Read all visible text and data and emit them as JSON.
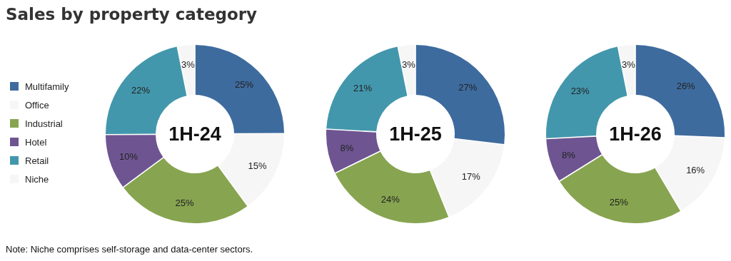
{
  "chart_data": [
    {
      "type": "donut",
      "title": "1H-24",
      "categories": [
        "Multifamily",
        "Office",
        "Industrial",
        "Hotel",
        "Retail",
        "Niche"
      ],
      "values": [
        25,
        15,
        25,
        10,
        22,
        3
      ],
      "value_labels": [
        "25%",
        "15%",
        "25%",
        "10%",
        "22%",
        "3%"
      ],
      "colors": [
        "#3e6b9e",
        "#f6f6f6",
        "#87a450",
        "#6e5591",
        "#4397ac",
        "#f6f6f6"
      ],
      "legend": "left",
      "annotations": [
        "Sales by property category",
        "Note: Niche comprises self-storage and data-center sectors."
      ]
    },
    {
      "type": "donut",
      "title": "1H-25",
      "categories": [
        null,
        null,
        null,
        null,
        null,
        null
      ],
      "values": [
        27,
        17,
        24,
        8,
        21,
        3
      ],
      "value_labels": [
        "27%",
        "17%",
        "24%",
        "8%",
        "21%",
        "3%"
      ],
      "colors": [
        "#3e6b9e",
        "#f6f6f6",
        "#87a450",
        "#6e5591",
        "#4397ac",
        "#f6f6f6"
      ]
    },
    {
      "type": "donut",
      "title": "1H-26",
      "categories": [
        null,
        null,
        null,
        null,
        null,
        null
      ],
      "values": [
        26,
        16,
        25,
        8,
        23,
        3
      ],
      "value_labels": [
        "26%",
        "16%",
        "25%",
        "8%",
        "23%",
        "3%"
      ],
      "colors": [
        "#3e6b9e",
        "#f6f6f6",
        "#87a450",
        "#6e5591",
        "#4397ac",
        "#f6f6f6"
      ]
    }
  ]
}
